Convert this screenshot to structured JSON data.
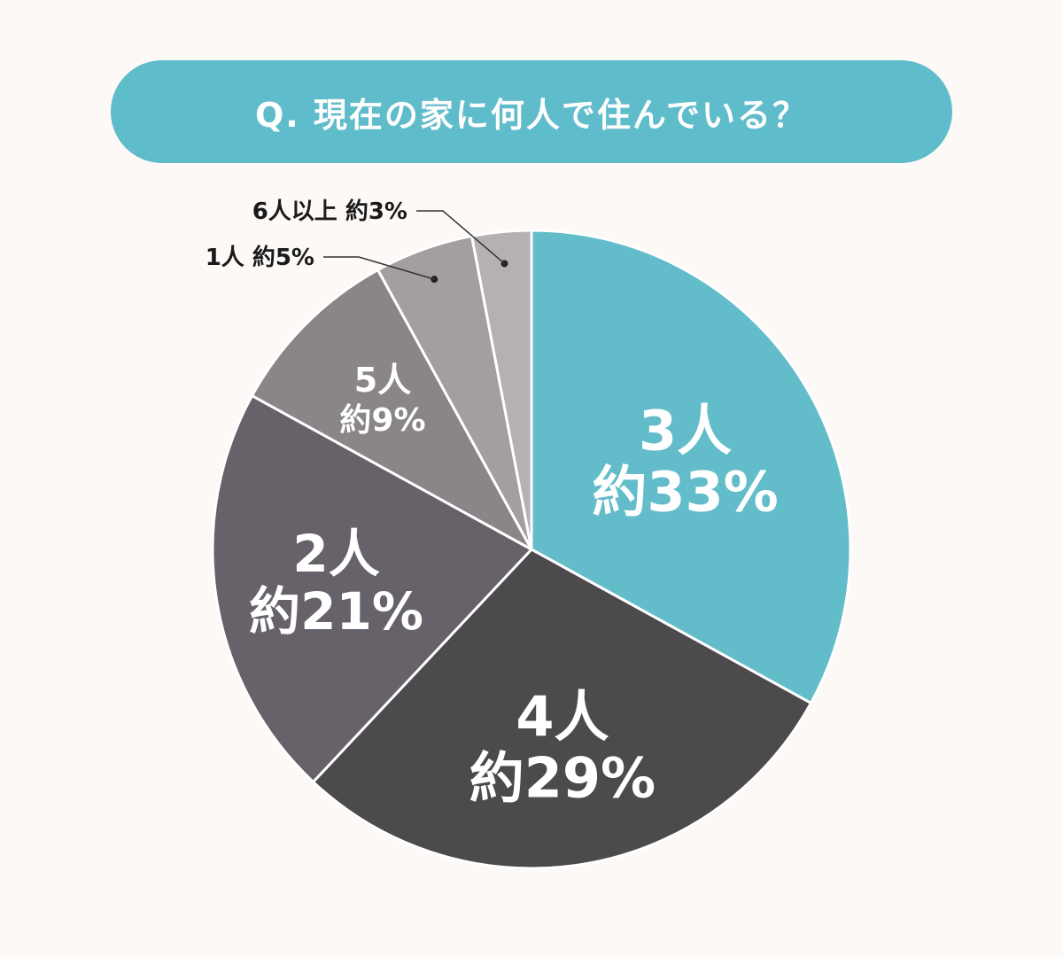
{
  "title": "Q. 現在の家に何人で住んでいる？",
  "chart_data": {
    "type": "pie",
    "title": "Q. 現在の家に何人で住んでいる？",
    "slices": [
      {
        "name": "3人",
        "label": "約33%",
        "value": 33,
        "color": "#62bcc9"
      },
      {
        "name": "4人",
        "label": "約29%",
        "value": 29,
        "color": "#4d4a4e"
      },
      {
        "name": "2人",
        "label": "約21%",
        "value": 21,
        "color": "#67626a"
      },
      {
        "name": "5人",
        "label": "約9%",
        "value": 9,
        "color": "#8a8589"
      },
      {
        "name": "1人",
        "label": "約5%",
        "value": 5,
        "color": "#a29ea1"
      },
      {
        "name": "6人以上",
        "label": "約3%",
        "value": 3,
        "color": "#b5b1b3"
      }
    ]
  }
}
